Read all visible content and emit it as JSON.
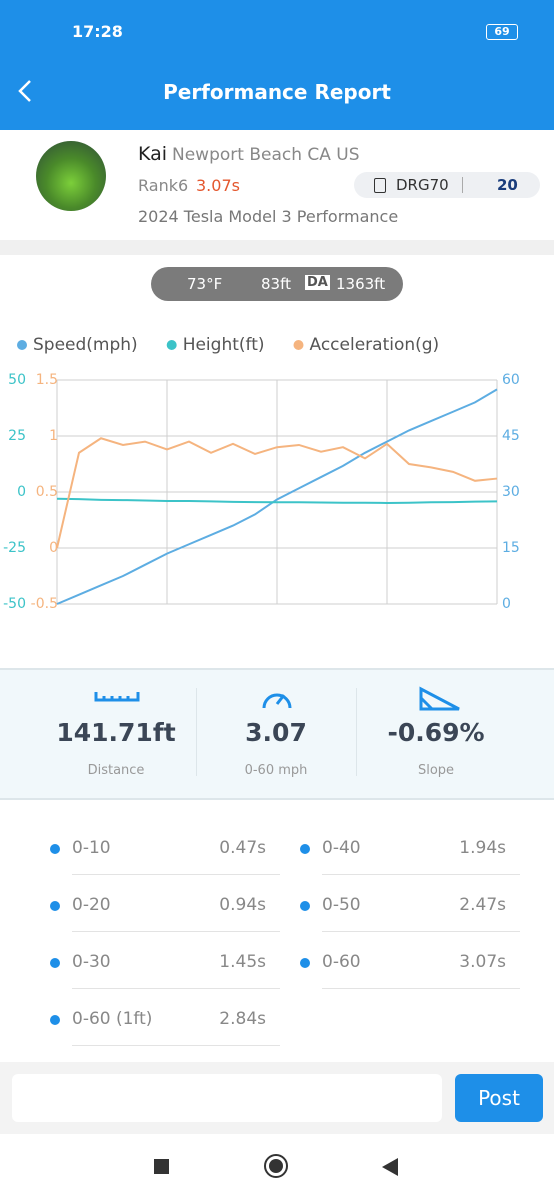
{
  "status_bar": {
    "time": "17:28",
    "battery": "69"
  },
  "header": {
    "title": "Performance Report"
  },
  "profile": {
    "name": "Kai",
    "location": "Newport Beach CA US",
    "rank": "Rank6",
    "time": "3.07s",
    "tag": "DRG70",
    "count": "20",
    "car": "2024 Tesla Model 3 Performance"
  },
  "conditions": {
    "temperature": "73°F",
    "elevation": "83ft",
    "da_badge": "DA",
    "density_altitude": "1363ft"
  },
  "chart_data": {
    "type": "line",
    "grid": true,
    "series": [
      {
        "name": "Speed(mph)",
        "color": "#5dade2",
        "axis": "y2",
        "values": [
          0,
          2.5,
          5,
          7.5,
          10.5,
          13.5,
          16,
          18.5,
          21,
          24,
          28,
          31,
          34,
          37,
          40.5,
          43.5,
          46.5,
          49,
          51.5,
          54,
          57.5
        ]
      },
      {
        "name": "Height(ft)",
        "color": "#3cc3c8",
        "values": [
          -3,
          -3.2,
          -3.5,
          -3.6,
          -3.8,
          -4,
          -4,
          -4.2,
          -4.4,
          -4.5,
          -4.6,
          -4.6,
          -4.7,
          -4.8,
          -4.8,
          -4.9,
          -4.8,
          -4.6,
          -4.5,
          -4.3,
          -4.2
        ]
      },
      {
        "name": "Acceleration(g)",
        "color": "#f5b47f",
        "axis": "y3",
        "values": [
          0,
          0.85,
          0.98,
          0.92,
          0.95,
          0.88,
          0.95,
          0.85,
          0.93,
          0.84,
          0.9,
          0.92,
          0.86,
          0.9,
          0.8,
          0.93,
          0.75,
          0.72,
          0.68,
          0.6,
          0.62
        ]
      }
    ],
    "ylim": [
      -50,
      50
    ],
    "yticks": [
      -50,
      -25,
      0,
      25,
      50
    ],
    "y2lim": [
      0,
      60
    ],
    "y2ticks": [
      0,
      15,
      30,
      45,
      60
    ],
    "y3lim": [
      -0.5,
      1.5
    ],
    "y3ticks": [
      -0.5,
      0,
      0.5,
      1,
      1.5
    ]
  },
  "stats": [
    {
      "value": "141.71ft",
      "label": "Distance"
    },
    {
      "value": "3.07",
      "label": "0-60 mph"
    },
    {
      "value": "-0.69%",
      "label": "Slope"
    }
  ],
  "times": [
    {
      "label": "0-10",
      "value": "0.47s"
    },
    {
      "label": "0-40",
      "value": "1.94s"
    },
    {
      "label": "0-20",
      "value": "0.94s"
    },
    {
      "label": "0-50",
      "value": "2.47s"
    },
    {
      "label": "0-30",
      "value": "1.45s"
    },
    {
      "label": "0-60",
      "value": "3.07s"
    },
    {
      "label": "0-60 (1ft)",
      "value": "2.84s"
    }
  ],
  "comment": {
    "button": "Post"
  }
}
